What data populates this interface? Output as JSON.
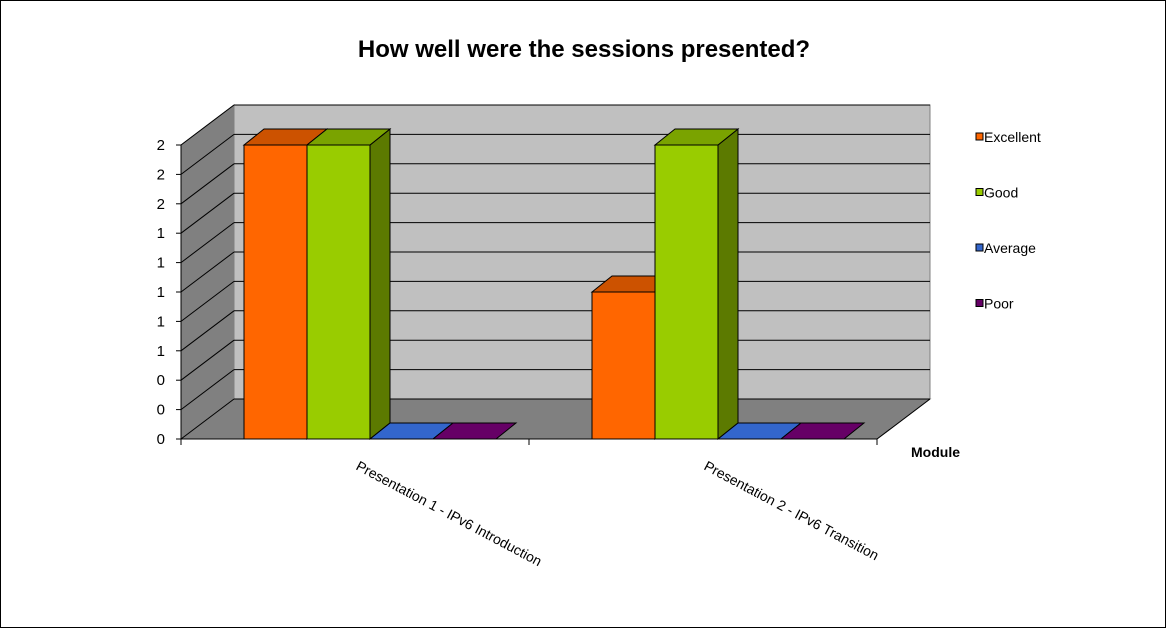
{
  "chart_data": {
    "type": "bar",
    "title": "How well were the sessions presented?",
    "xlabel": "Module",
    "ylabel": "",
    "categories": [
      "Presentation 1 - IPv6 Introduction",
      "Presentation 2 - IPv6 Transition"
    ],
    "series": [
      {
        "name": "Excellent",
        "values": [
          2,
          1
        ],
        "color": "#ff6600"
      },
      {
        "name": "Good",
        "values": [
          2,
          2
        ],
        "color": "#99cc00"
      },
      {
        "name": "Average",
        "values": [
          0,
          0
        ],
        "color": "#3366cc"
      },
      {
        "name": "Poor",
        "values": [
          0,
          0
        ],
        "color": "#660066"
      }
    ],
    "ylim": [
      0,
      2
    ],
    "y_tick_labels": [
      "0",
      "0",
      "0",
      "1",
      "1",
      "1",
      "1",
      "1",
      "2",
      "2",
      "2"
    ],
    "grid": true,
    "legend": "right",
    "projection": "3d"
  }
}
